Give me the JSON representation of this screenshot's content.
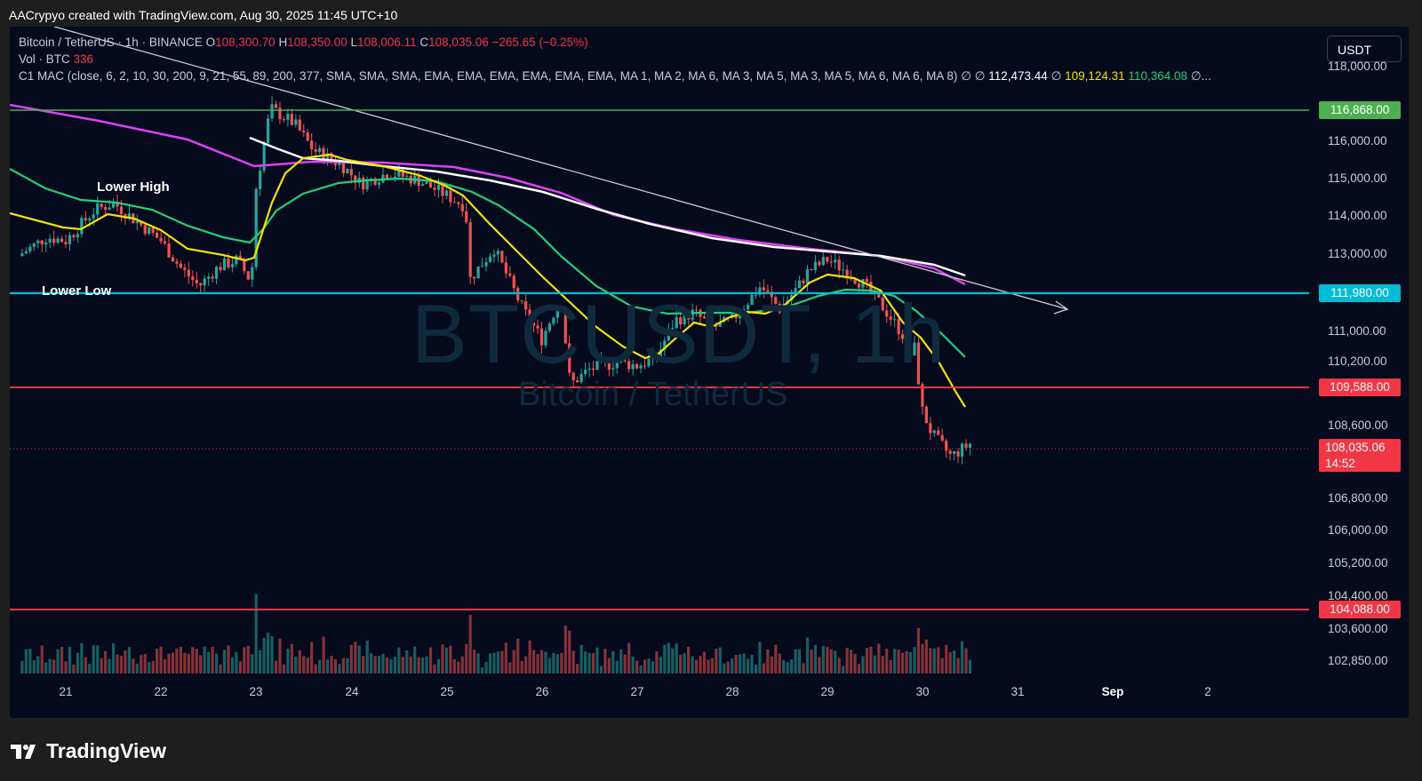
{
  "header": {
    "caption": "AACrypyo created with TradingView.com, Aug 30, 2025 11:45 UTC+10"
  },
  "symbol_line": {
    "name": "Bitcoin / TetherUS · 1h · BINANCE",
    "open_label": "O",
    "open": "108,300.70",
    "high_label": "H",
    "high": "108,350.00",
    "low_label": "L",
    "low": "108,006.11",
    "close_label": "C",
    "close": "108,035.06",
    "change": "−265.65 (−0.25%)"
  },
  "volume_line": {
    "label": "Vol · BTC",
    "value": "336"
  },
  "indicator_line": {
    "text": "C1 MAC (close, 6, 2, 10, 30, 200, 9, 21, 55, 89, 200, 377, SMA, SMA, SMA, EMA, EMA, EMA, EMA, EMA, EMA, MA 1, MA 2, MA 6, MA 3, MA 5, MA 3, MA 5, MA 6, MA 6, MA 8)",
    "sym1": "∅",
    "sym2": "∅",
    "value1": "112,473.44",
    "sym3": "∅",
    "value2": "109,124.31",
    "value3": "110,364.08",
    "tail": "∅..."
  },
  "currency_button": "USDT",
  "watermark": {
    "main": "BTCUSDT, 1h",
    "sub": "Bitcoin / TetherUS"
  },
  "annotations": {
    "lower_high": "Lower High",
    "lower_low": "Lower Low"
  },
  "price_axis": [
    "118,000.00",
    "116,000.00",
    "115,000.00",
    "114,000.00",
    "113,000.00",
    "111,000.00",
    "110,200.00",
    "108,600.00",
    "106,800.00",
    "106,000.00",
    "105,200.00",
    "104,400.00",
    "103,600.00",
    "102,850.00"
  ],
  "level_tags": {
    "green": "116,868.00",
    "cyan": "111,980.00",
    "red_upper": "109,588.00",
    "current": "108,035.06",
    "countdown": "14:52",
    "red_lower": "104,088.00"
  },
  "time_axis": [
    "21",
    "22",
    "23",
    "24",
    "25",
    "26",
    "27",
    "28",
    "29",
    "30",
    "31",
    "Sep",
    "2"
  ],
  "brand": "TradingView",
  "colors": {
    "background": "#050a1d",
    "green_level": "#4caf50",
    "cyan_level": "#00bcd4",
    "red_level": "#f23645",
    "up_candle": "#26a69a",
    "down_candle": "#ef5350",
    "ema_yellow": "#f3e300",
    "ema_green": "#22d07d",
    "ma_white": "#ffffff",
    "ma_magenta": "#e040fb"
  },
  "chart_data": {
    "type": "candlestick",
    "title": "Bitcoin / TetherUS · 1h · BINANCE",
    "x_labels": [
      "21",
      "22",
      "23",
      "24",
      "25",
      "26",
      "27",
      "28",
      "29",
      "30",
      "31",
      "Sep",
      "2"
    ],
    "price_levels": {
      "resistance_green": 116868,
      "support_cyan": 111980,
      "support_red": 109588,
      "support_red_low": 104088,
      "last_price": 108035.06
    },
    "price_path": [
      [
        20.5,
        113000
      ],
      [
        20.8,
        113500
      ],
      [
        21.0,
        113400
      ],
      [
        21.3,
        114200
      ],
      [
        21.5,
        114400
      ],
      [
        21.8,
        113800
      ],
      [
        22.0,
        113400
      ],
      [
        22.2,
        112700
      ],
      [
        22.4,
        112200
      ],
      [
        22.6,
        112700
      ],
      [
        22.8,
        112900
      ],
      [
        22.95,
        112300
      ],
      [
        23.0,
        114800
      ],
      [
        23.15,
        116900
      ],
      [
        23.4,
        116500
      ],
      [
        23.6,
        115800
      ],
      [
        23.9,
        115400
      ],
      [
        24.1,
        114900
      ],
      [
        24.4,
        115200
      ],
      [
        24.7,
        115000
      ],
      [
        25.0,
        114600
      ],
      [
        25.2,
        114300
      ],
      [
        25.25,
        112400
      ],
      [
        25.5,
        113200
      ],
      [
        25.8,
        111600
      ],
      [
        26.0,
        110800
      ],
      [
        26.2,
        111900
      ],
      [
        26.3,
        109600
      ],
      [
        26.5,
        110000
      ],
      [
        26.8,
        110200
      ],
      [
        27.0,
        110100
      ],
      [
        27.2,
        110300
      ],
      [
        27.4,
        111300
      ],
      [
        27.6,
        111500
      ],
      [
        27.8,
        111100
      ],
      [
        28.0,
        111300
      ],
      [
        28.3,
        112200
      ],
      [
        28.5,
        111600
      ],
      [
        28.7,
        112200
      ],
      [
        28.8,
        112600
      ],
      [
        29.0,
        112900
      ],
      [
        29.2,
        112600
      ],
      [
        29.4,
        112200
      ],
      [
        29.6,
        111600
      ],
      [
        29.8,
        110900
      ],
      [
        29.85,
        109900
      ],
      [
        29.9,
        110900
      ],
      [
        30.0,
        108900
      ],
      [
        30.1,
        108300
      ],
      [
        30.3,
        107700
      ],
      [
        30.5,
        108035
      ]
    ],
    "ylim": [
      102500,
      118500
    ],
    "legend": "top-left"
  }
}
